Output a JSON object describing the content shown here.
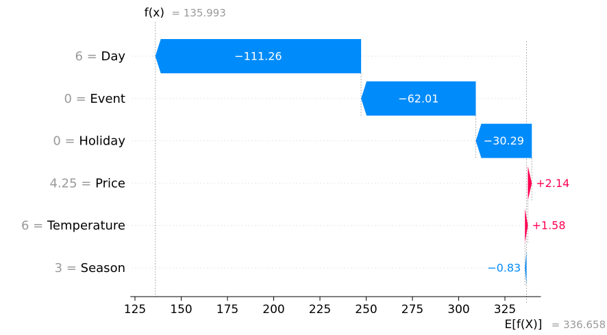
{
  "chart_data": {
    "type": "waterfall",
    "title": "",
    "xlabel": "",
    "ylabel": "",
    "fx": {
      "label": "f(x)",
      "value_text": "= 135.993",
      "value": 135.993
    },
    "efx": {
      "label": "E[f(X)]",
      "value_text": "= 336.658",
      "value": 336.658
    },
    "features": [
      {
        "value": "6",
        "name": "Day",
        "shap": -111.26,
        "label": "−111.26"
      },
      {
        "value": "0",
        "name": "Event",
        "shap": -62.01,
        "label": "−62.01"
      },
      {
        "value": "0",
        "name": "Holiday",
        "shap": -30.29,
        "label": "−30.29"
      },
      {
        "value": "4.25",
        "name": "Price",
        "shap": 2.14,
        "label": "+2.14"
      },
      {
        "value": "6",
        "name": "Temperature",
        "shap": 1.58,
        "label": "+1.58"
      },
      {
        "value": "3",
        "name": "Season",
        "shap": -0.83,
        "label": "−0.83"
      }
    ],
    "x_ticks": [
      125,
      150,
      175,
      200,
      225,
      250,
      275,
      300,
      325
    ],
    "xlim": [
      122.5,
      340
    ],
    "colors": {
      "negative": "#008bfb",
      "positive": "#ff0051",
      "feature_value": "#999999",
      "label": "#000000"
    }
  }
}
